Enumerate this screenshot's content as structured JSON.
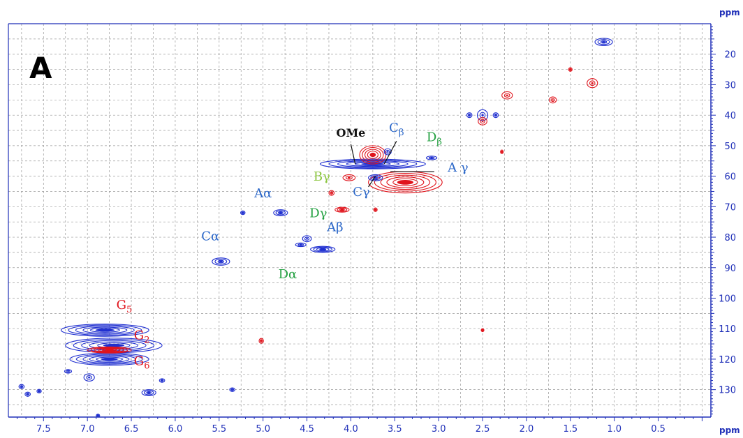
{
  "chart_data": {
    "type": "scatter",
    "panel_label": "A",
    "x_unit": "ppm",
    "y_unit": "ppm",
    "xlim": [
      7.9,
      -0.1
    ],
    "ylim": [
      10,
      139
    ],
    "x_ticks": [
      "7.5",
      "7.0",
      "6.5",
      "6.0",
      "5.5",
      "5.0",
      "4.5",
      "4.0",
      "3.5",
      "3.0",
      "2.5",
      "2.0",
      "1.5",
      "1.0",
      "0.5"
    ],
    "x_tick_values": [
      7.5,
      7.0,
      6.5,
      6.0,
      5.5,
      5.0,
      4.5,
      4.0,
      3.5,
      3.0,
      2.5,
      2.0,
      1.5,
      1.0,
      0.5
    ],
    "y_ticks": [
      "20",
      "30",
      "40",
      "50",
      "60",
      "70",
      "80",
      "90",
      "100",
      "110",
      "120",
      "130"
    ],
    "y_tick_values": [
      20,
      30,
      40,
      50,
      60,
      70,
      80,
      90,
      100,
      110,
      120,
      130
    ],
    "grid": true,
    "colors": {
      "positive": "#e0141c",
      "negative": "#1f2fd0",
      "axis": "#1f2fb8",
      "grid": "#9a9a9a"
    },
    "peaks": [
      {
        "x": 1.12,
        "y": 16,
        "rx": 0.1,
        "ry": 1.2,
        "color": "negative"
      },
      {
        "x": 1.5,
        "y": 25,
        "rx": 0.02,
        "ry": 0.6,
        "color": "positive"
      },
      {
        "x": 1.25,
        "y": 29.5,
        "rx": 0.06,
        "ry": 1.5,
        "color": "positive"
      },
      {
        "x": 1.7,
        "y": 35,
        "rx": 0.04,
        "ry": 1.0,
        "color": "positive"
      },
      {
        "x": 2.22,
        "y": 33.5,
        "rx": 0.06,
        "ry": 1.2,
        "color": "positive"
      },
      {
        "x": 2.5,
        "y": 40,
        "rx": 0.06,
        "ry": 1.8,
        "color": "negative"
      },
      {
        "x": 2.5,
        "y": 42,
        "rx": 0.05,
        "ry": 1.2,
        "color": "positive"
      },
      {
        "x": 2.65,
        "y": 40,
        "rx": 0.03,
        "ry": 0.8,
        "color": "negative"
      },
      {
        "x": 2.35,
        "y": 40,
        "rx": 0.03,
        "ry": 0.8,
        "color": "negative"
      },
      {
        "x": 2.28,
        "y": 52,
        "rx": 0.015,
        "ry": 0.6,
        "color": "positive"
      },
      {
        "x": 3.75,
        "y": 56,
        "rx": 0.6,
        "ry": 1.6,
        "color": "negative"
      },
      {
        "x": 3.75,
        "y": 53,
        "rx": 0.15,
        "ry": 3.0,
        "color": "positive"
      },
      {
        "x": 3.38,
        "y": 62,
        "rx": 0.42,
        "ry": 3.5,
        "color": "positive"
      },
      {
        "x": 3.58,
        "y": 52,
        "rx": 0.04,
        "ry": 1.0,
        "color": "negative"
      },
      {
        "x": 3.08,
        "y": 54,
        "rx": 0.06,
        "ry": 0.6,
        "color": "negative"
      },
      {
        "x": 3.72,
        "y": 60.5,
        "rx": 0.08,
        "ry": 1.0,
        "color": "negative"
      },
      {
        "x": 4.02,
        "y": 60.5,
        "rx": 0.07,
        "ry": 1.0,
        "color": "positive"
      },
      {
        "x": 4.22,
        "y": 65.5,
        "rx": 0.03,
        "ry": 0.8,
        "color": "positive"
      },
      {
        "x": 4.1,
        "y": 71,
        "rx": 0.08,
        "ry": 0.8,
        "color": "positive"
      },
      {
        "x": 3.72,
        "y": 71,
        "rx": 0.02,
        "ry": 0.6,
        "color": "positive"
      },
      {
        "x": 4.8,
        "y": 72,
        "rx": 0.08,
        "ry": 1.0,
        "color": "negative"
      },
      {
        "x": 5.23,
        "y": 72,
        "rx": 0.025,
        "ry": 0.6,
        "color": "negative"
      },
      {
        "x": 4.5,
        "y": 80.5,
        "rx": 0.05,
        "ry": 1.0,
        "color": "negative"
      },
      {
        "x": 4.32,
        "y": 84,
        "rx": 0.14,
        "ry": 1.0,
        "color": "negative"
      },
      {
        "x": 4.57,
        "y": 82.5,
        "rx": 0.06,
        "ry": 0.6,
        "color": "negative"
      },
      {
        "x": 5.48,
        "y": 88,
        "rx": 0.1,
        "ry": 1.2,
        "color": "negative"
      },
      {
        "x": 5.02,
        "y": 114,
        "rx": 0.025,
        "ry": 0.8,
        "color": "positive"
      },
      {
        "x": 2.5,
        "y": 110.5,
        "rx": 0.01,
        "ry": 0.5,
        "color": "positive"
      },
      {
        "x": 6.8,
        "y": 110.5,
        "rx": 0.5,
        "ry": 2.0,
        "color": "negative"
      },
      {
        "x": 6.7,
        "y": 115.5,
        "rx": 0.55,
        "ry": 2.4,
        "color": "negative"
      },
      {
        "x": 6.75,
        "y": 120,
        "rx": 0.45,
        "ry": 2.0,
        "color": "negative"
      },
      {
        "x": 6.75,
        "y": 117,
        "rx": 0.25,
        "ry": 1.0,
        "color": "positive"
      },
      {
        "x": 6.98,
        "y": 126,
        "rx": 0.06,
        "ry": 1.2,
        "color": "negative"
      },
      {
        "x": 7.22,
        "y": 124,
        "rx": 0.04,
        "ry": 0.6,
        "color": "negative"
      },
      {
        "x": 6.3,
        "y": 131,
        "rx": 0.08,
        "ry": 1.0,
        "color": "negative"
      },
      {
        "x": 6.15,
        "y": 127,
        "rx": 0.03,
        "ry": 0.6,
        "color": "negative"
      },
      {
        "x": 7.75,
        "y": 129,
        "rx": 0.03,
        "ry": 0.7,
        "color": "negative"
      },
      {
        "x": 7.68,
        "y": 131.5,
        "rx": 0.03,
        "ry": 0.7,
        "color": "negative"
      },
      {
        "x": 7.55,
        "y": 130.5,
        "rx": 0.025,
        "ry": 0.6,
        "color": "negative"
      },
      {
        "x": 5.35,
        "y": 130,
        "rx": 0.03,
        "ry": 0.6,
        "color": "negative"
      },
      {
        "x": 6.88,
        "y": 138.5,
        "rx": 0.02,
        "ry": 0.4,
        "color": "negative"
      }
    ],
    "annotations": [
      {
        "label": "OMe",
        "sub": "",
        "x": 4.0,
        "y": 47,
        "color": "#111111",
        "bold": true,
        "leader": [
          [
            4.0,
            49.5
          ],
          [
            3.95,
            56
          ]
        ]
      },
      {
        "label": "C",
        "sub": "β",
        "x": 3.48,
        "y": 45.5,
        "color": "#2a66c8",
        "leader": [
          [
            3.48,
            48.5
          ],
          [
            3.62,
            56
          ]
        ]
      },
      {
        "label": "D",
        "sub": "β",
        "x": 3.05,
        "y": 48.5,
        "color": "#22a040"
      },
      {
        "label": "A γ",
        "sub": "",
        "x": 2.78,
        "y": 58.5,
        "color": "#2a66c8",
        "leader": [
          [
            3.05,
            58.5
          ],
          [
            3.55,
            58.5
          ]
        ]
      },
      {
        "label": "Bγ",
        "sub": "",
        "x": 4.33,
        "y": 61.5,
        "color": "#8cc63f"
      },
      {
        "label": "Cγ",
        "sub": "",
        "x": 3.88,
        "y": 66.5,
        "color": "#2a66c8",
        "leader": [
          [
            3.8,
            63.5
          ],
          [
            3.72,
            60
          ]
        ]
      },
      {
        "label": "Aα",
        "sub": "",
        "x": 5.0,
        "y": 67,
        "color": "#2a66c8"
      },
      {
        "label": "Dγ",
        "sub": "",
        "x": 4.37,
        "y": 73.5,
        "color": "#22a040"
      },
      {
        "label": "Aβ",
        "sub": "",
        "x": 4.18,
        "y": 78,
        "color": "#2a66c8"
      },
      {
        "label": "Cα",
        "sub": "",
        "x": 5.6,
        "y": 81,
        "color": "#2a66c8"
      },
      {
        "label": "Dα",
        "sub": "",
        "x": 4.72,
        "y": 93.5,
        "color": "#22a040"
      },
      {
        "label": "G",
        "sub": "5",
        "x": 6.58,
        "y": 103.5,
        "color": "#e0141c"
      },
      {
        "label": "G",
        "sub": "2",
        "x": 6.38,
        "y": 113.5,
        "color": "#e0141c"
      },
      {
        "label": "G",
        "sub": "6",
        "x": 6.38,
        "y": 122,
        "color": "#e0141c"
      }
    ]
  }
}
